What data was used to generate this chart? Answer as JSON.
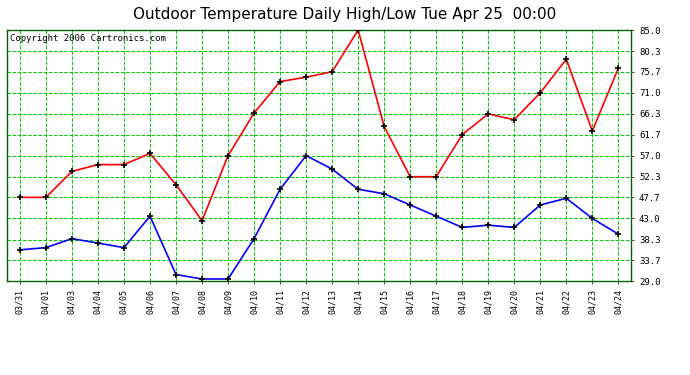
{
  "title": "Outdoor Temperature Daily High/Low Tue Apr 25  00:00",
  "copyright": "Copyright 2006 Cartronics.com",
  "x_labels": [
    "03/31",
    "04/01",
    "04/03",
    "04/04",
    "04/05",
    "04/06",
    "04/07",
    "04/08",
    "04/09",
    "04/10",
    "04/11",
    "04/12",
    "04/13",
    "04/14",
    "04/15",
    "04/16",
    "04/17",
    "04/18",
    "04/19",
    "04/20",
    "04/21",
    "04/22",
    "04/23",
    "04/24"
  ],
  "high_temps": [
    47.7,
    47.7,
    53.5,
    55.0,
    55.0,
    57.5,
    50.5,
    42.5,
    57.0,
    66.5,
    73.5,
    74.5,
    75.7,
    85.0,
    63.5,
    52.3,
    52.3,
    61.7,
    66.3,
    65.0,
    71.0,
    78.5,
    62.5,
    76.5
  ],
  "low_temps": [
    36.0,
    36.5,
    38.5,
    37.5,
    36.5,
    43.5,
    30.5,
    29.5,
    29.5,
    38.5,
    49.5,
    57.0,
    54.0,
    49.5,
    48.5,
    46.0,
    43.5,
    41.0,
    41.5,
    41.0,
    46.0,
    47.5,
    43.0,
    39.5
  ],
  "high_color": "#ff0000",
  "low_color": "#0000ff",
  "bg_color": "#ffffff",
  "plot_bg_color": "#ffffff",
  "grid_color": "#00cc00",
  "ylim": [
    29.0,
    85.0
  ],
  "yticks": [
    29.0,
    33.7,
    38.3,
    43.0,
    47.7,
    52.3,
    57.0,
    61.7,
    66.3,
    71.0,
    75.7,
    80.3,
    85.0
  ],
  "title_fontsize": 11,
  "copyright_fontsize": 6.5,
  "marker": "+",
  "marker_size": 5,
  "marker_edge_width": 1.2,
  "line_width": 1.2
}
